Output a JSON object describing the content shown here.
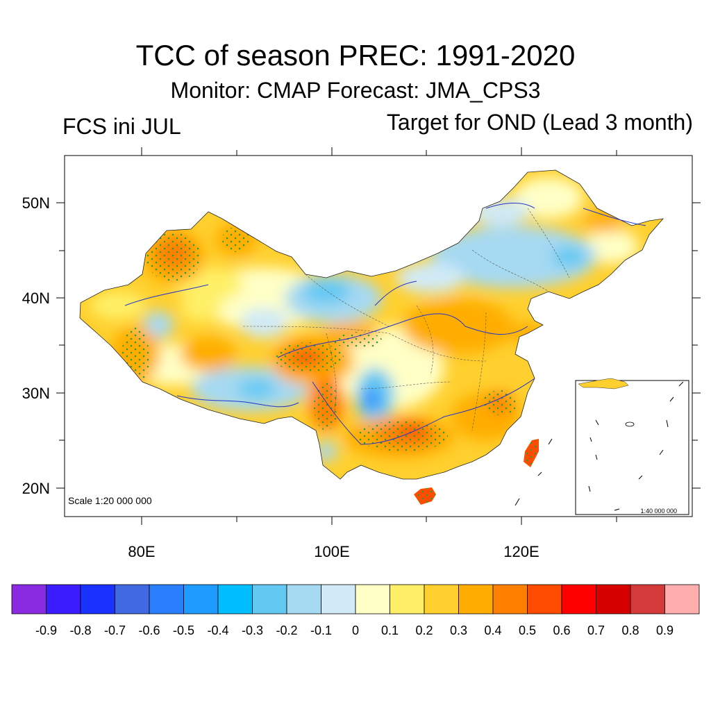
{
  "title": "TCC of season PREC: 1991-2020",
  "subtitle": "Monitor: CMAP   Forecast: JMA_CPS3",
  "left_label": "FCS ini JUL",
  "right_label": "Target for OND (Lead 3 month)",
  "map": {
    "scale_label": "Scale 1:20 000 000",
    "inset_scale_label": "1:40 000 000",
    "lat_labels": [
      "50N",
      "40N",
      "30N",
      "20N"
    ],
    "lon_labels": [
      "80E",
      "100E",
      "120E"
    ]
  },
  "colorbar": {
    "colors": [
      "#8a2be2",
      "#3a1cff",
      "#1a32ff",
      "#4169e1",
      "#2a7fff",
      "#1e9bff",
      "#00bfff",
      "#63c8f2",
      "#a6d9f2",
      "#d0eaf7",
      "#ffffc6",
      "#fff067",
      "#ffd02e",
      "#ffad00",
      "#ff8000",
      "#ff4c00",
      "#ff0000",
      "#d60000",
      "#d53a3a",
      "#ffaeae"
    ],
    "labels": [
      "-0.9",
      "-0.8",
      "-0.7",
      "-0.6",
      "-0.5",
      "-0.4",
      "-0.3",
      "-0.2",
      "-0.1",
      "0",
      "0.1",
      "0.2",
      "0.3",
      "0.4",
      "0.5",
      "0.6",
      "0.7",
      "0.8",
      "0.9"
    ]
  }
}
